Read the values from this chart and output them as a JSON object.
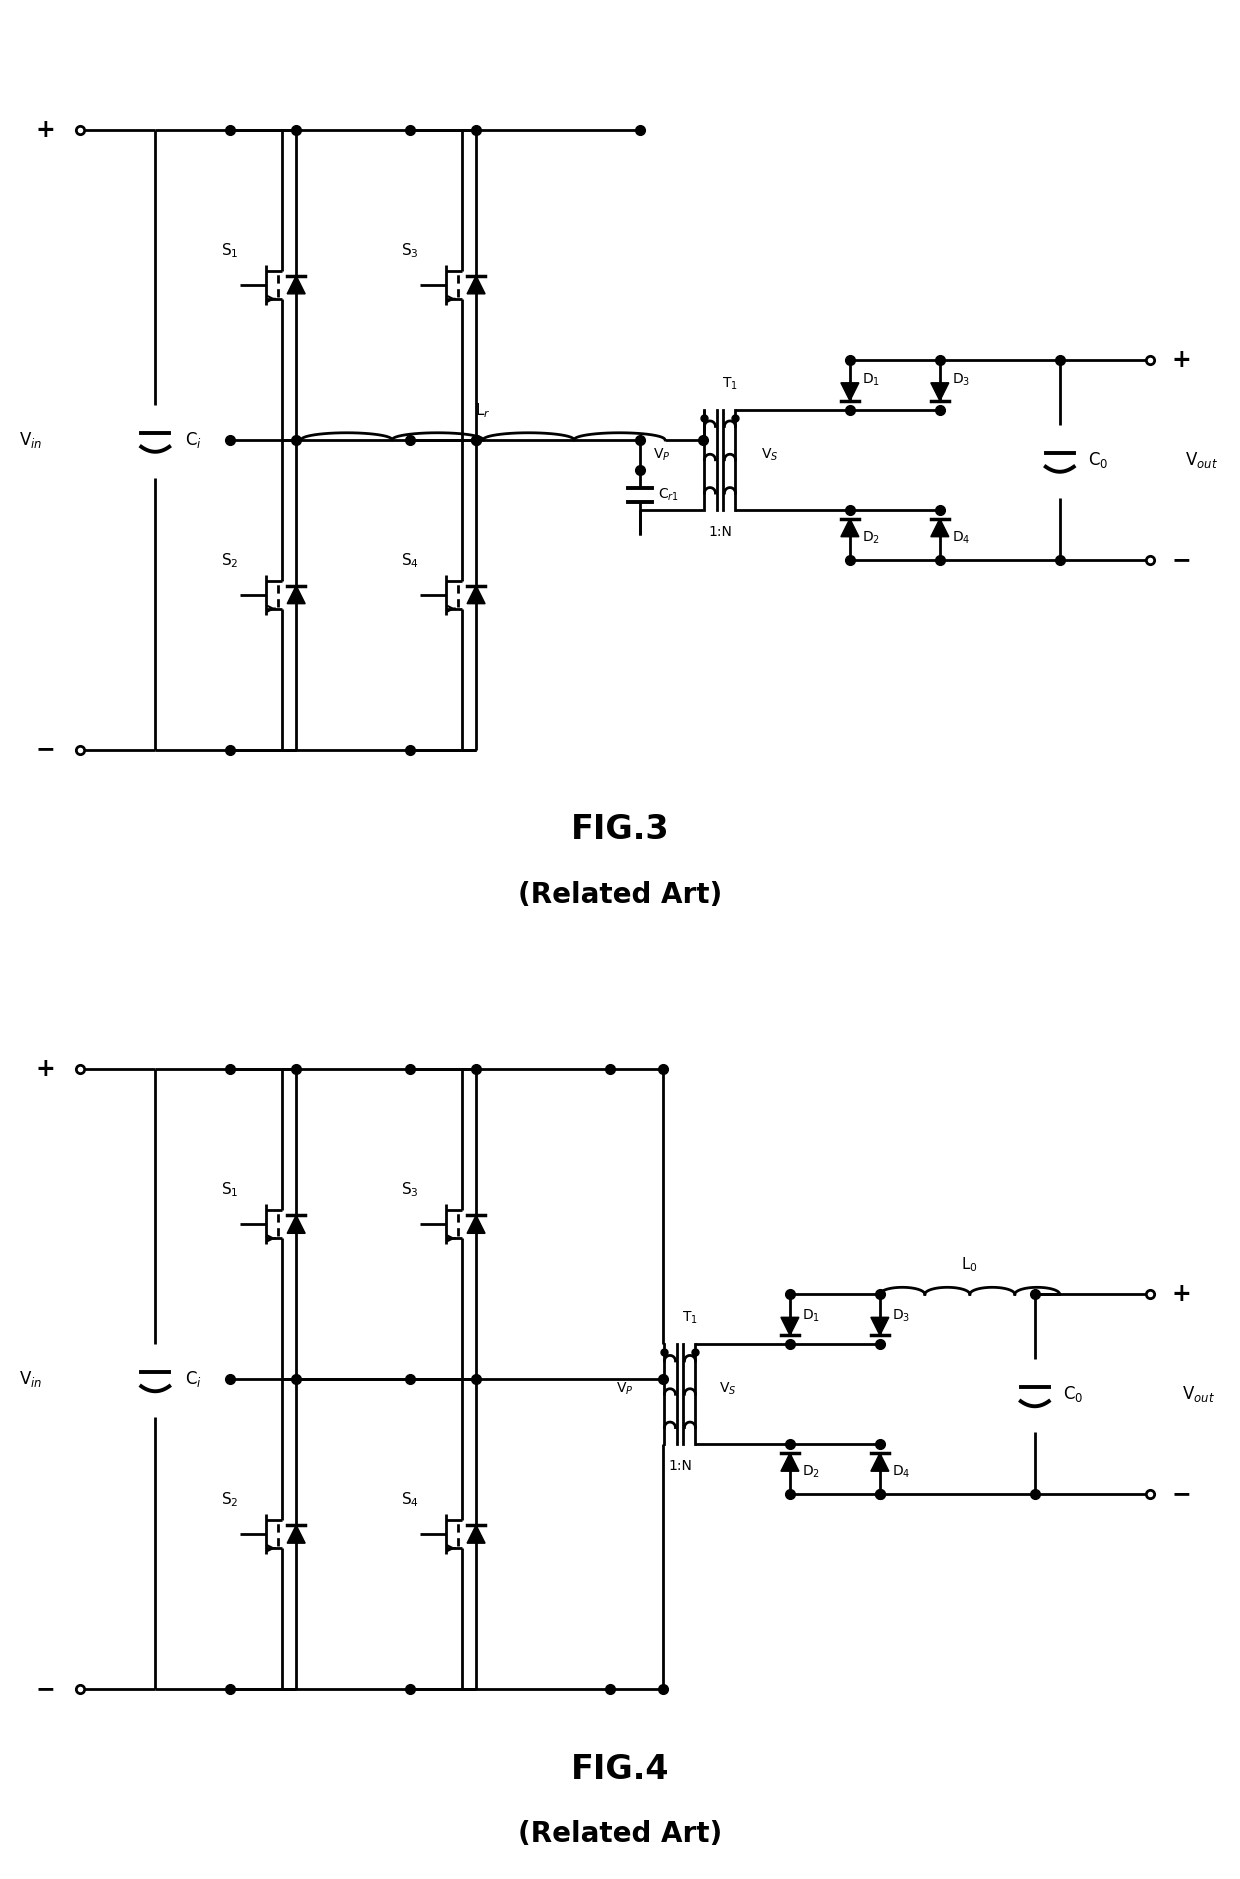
{
  "fig3_title": "FIG.3",
  "fig3_subtitle": "(Related Art)",
  "fig4_title": "FIG.4",
  "fig4_subtitle": "(Related Art)",
  "lc": "#000000",
  "lw": 2.0,
  "bg": "#ffffff"
}
